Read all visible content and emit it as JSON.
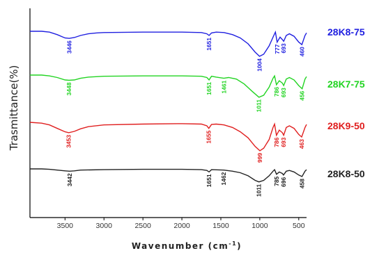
{
  "chart_data": {
    "type": "line",
    "title": "",
    "xlabel": "Wavenumber (cm",
    "xlabel_sup": "-1",
    "xlabel_close": ")",
    "ylabel": "Trasmittance(%)",
    "xlim": [
      3950,
      400
    ],
    "x_reversed": true,
    "x_ticks": [
      "3500",
      "3000",
      "2500",
      "2000",
      "1500",
      "1000",
      "500"
    ],
    "grid": false,
    "legend_placement": "right",
    "series": [
      {
        "name": "28K8-75",
        "color": "#1f1fe0",
        "baseline": 0.0,
        "points": [
          [
            3950,
            0.0
          ],
          [
            3800,
            0.0
          ],
          [
            3700,
            0.02
          ],
          [
            3600,
            0.08
          ],
          [
            3500,
            0.16
          ],
          [
            3446,
            0.17
          ],
          [
            3380,
            0.15
          ],
          [
            3300,
            0.1
          ],
          [
            3200,
            0.06
          ],
          [
            3100,
            0.04
          ],
          [
            3000,
            0.03
          ],
          [
            2500,
            0.02
          ],
          [
            2000,
            0.02
          ],
          [
            1750,
            0.03
          ],
          [
            1680,
            0.06
          ],
          [
            1651,
            0.1
          ],
          [
            1620,
            0.04
          ],
          [
            1560,
            0.02
          ],
          [
            1460,
            0.03
          ],
          [
            1350,
            0.08
          ],
          [
            1250,
            0.16
          ],
          [
            1150,
            0.3
          ],
          [
            1060,
            0.5
          ],
          [
            1004,
            0.6
          ],
          [
            950,
            0.55
          ],
          [
            880,
            0.35
          ],
          [
            820,
            0.1
          ],
          [
            800,
            0.02
          ],
          [
            777,
            0.26
          ],
          [
            740,
            0.14
          ],
          [
            710,
            0.2
          ],
          [
            693,
            0.24
          ],
          [
            660,
            0.1
          ],
          [
            620,
            0.06
          ],
          [
            560,
            0.12
          ],
          [
            500,
            0.26
          ],
          [
            460,
            0.32
          ],
          [
            420,
            0.1
          ],
          [
            400,
            0.04
          ]
        ],
        "peaks": [
          [
            3446,
            "3446"
          ],
          [
            1651,
            "1651"
          ],
          [
            1004,
            "1004"
          ],
          [
            777,
            "777"
          ],
          [
            693,
            "693"
          ],
          [
            460,
            "460"
          ]
        ]
      },
      {
        "name": "28K7-75",
        "color": "#22d422",
        "baseline": 0.0,
        "points": [
          [
            3950,
            0.0
          ],
          [
            3800,
            0.0
          ],
          [
            3700,
            0.02
          ],
          [
            3600,
            0.06
          ],
          [
            3500,
            0.12
          ],
          [
            3448,
            0.13
          ],
          [
            3380,
            0.12
          ],
          [
            3300,
            0.08
          ],
          [
            3200,
            0.05
          ],
          [
            3000,
            0.03
          ],
          [
            2500,
            0.02
          ],
          [
            2000,
            0.02
          ],
          [
            1750,
            0.03
          ],
          [
            1680,
            0.06
          ],
          [
            1651,
            0.12
          ],
          [
            1620,
            0.03
          ],
          [
            1560,
            0.05
          ],
          [
            1461,
            0.08
          ],
          [
            1400,
            0.06
          ],
          [
            1300,
            0.1
          ],
          [
            1200,
            0.22
          ],
          [
            1100,
            0.4
          ],
          [
            1011,
            0.55
          ],
          [
            950,
            0.5
          ],
          [
            880,
            0.3
          ],
          [
            830,
            0.08
          ],
          [
            810,
            0.02
          ],
          [
            786,
            0.24
          ],
          [
            750,
            0.14
          ],
          [
            710,
            0.2
          ],
          [
            693,
            0.26
          ],
          [
            660,
            0.1
          ],
          [
            620,
            0.06
          ],
          [
            560,
            0.12
          ],
          [
            500,
            0.26
          ],
          [
            456,
            0.34
          ],
          [
            420,
            0.1
          ],
          [
            400,
            0.04
          ]
        ],
        "peaks": [
          [
            3448,
            "3448"
          ],
          [
            1651,
            "1651"
          ],
          [
            1461,
            "1461"
          ],
          [
            1011,
            "1011"
          ],
          [
            786,
            "786"
          ],
          [
            693,
            "693"
          ],
          [
            456,
            "456"
          ]
        ]
      },
      {
        "name": "28K9-50",
        "color": "#e01f1f",
        "baseline": 0.0,
        "points": [
          [
            3950,
            0.0
          ],
          [
            3800,
            0.02
          ],
          [
            3700,
            0.06
          ],
          [
            3600,
            0.14
          ],
          [
            3500,
            0.22
          ],
          [
            3453,
            0.24
          ],
          [
            3380,
            0.21
          ],
          [
            3300,
            0.15
          ],
          [
            3200,
            0.1
          ],
          [
            3000,
            0.06
          ],
          [
            2500,
            0.04
          ],
          [
            2000,
            0.03
          ],
          [
            1750,
            0.04
          ],
          [
            1680,
            0.08
          ],
          [
            1655,
            0.14
          ],
          [
            1620,
            0.05
          ],
          [
            1560,
            0.04
          ],
          [
            1460,
            0.06
          ],
          [
            1350,
            0.12
          ],
          [
            1250,
            0.22
          ],
          [
            1150,
            0.36
          ],
          [
            1060,
            0.56
          ],
          [
            999,
            0.66
          ],
          [
            950,
            0.6
          ],
          [
            880,
            0.4
          ],
          [
            830,
            0.12
          ],
          [
            810,
            0.04
          ],
          [
            786,
            0.3
          ],
          [
            750,
            0.18
          ],
          [
            710,
            0.24
          ],
          [
            693,
            0.3
          ],
          [
            660,
            0.12
          ],
          [
            620,
            0.08
          ],
          [
            560,
            0.14
          ],
          [
            500,
            0.28
          ],
          [
            463,
            0.34
          ],
          [
            420,
            0.12
          ],
          [
            400,
            0.05
          ]
        ],
        "peaks": [
          [
            3453,
            "3453"
          ],
          [
            1655,
            "1655"
          ],
          [
            999,
            "999"
          ],
          [
            786,
            "786"
          ],
          [
            693,
            "693"
          ],
          [
            463,
            "463"
          ]
        ]
      },
      {
        "name": "28K8-50",
        "color": "#222222",
        "baseline": 0.0,
        "points": [
          [
            3950,
            0.0
          ],
          [
            3800,
            0.0
          ],
          [
            3700,
            0.01
          ],
          [
            3600,
            0.03
          ],
          [
            3500,
            0.05
          ],
          [
            3442,
            0.06
          ],
          [
            3380,
            0.05
          ],
          [
            3300,
            0.03
          ],
          [
            3000,
            0.02
          ],
          [
            2500,
            0.01
          ],
          [
            2000,
            0.01
          ],
          [
            1750,
            0.02
          ],
          [
            1680,
            0.04
          ],
          [
            1651,
            0.08
          ],
          [
            1620,
            0.02
          ],
          [
            1462,
            0.03
          ],
          [
            1350,
            0.06
          ],
          [
            1250,
            0.1
          ],
          [
            1150,
            0.18
          ],
          [
            1060,
            0.3
          ],
          [
            1011,
            0.34
          ],
          [
            950,
            0.3
          ],
          [
            880,
            0.18
          ],
          [
            830,
            0.06
          ],
          [
            810,
            0.02
          ],
          [
            785,
            0.14
          ],
          [
            750,
            0.08
          ],
          [
            710,
            0.12
          ],
          [
            696,
            0.16
          ],
          [
            660,
            0.06
          ],
          [
            620,
            0.04
          ],
          [
            560,
            0.08
          ],
          [
            500,
            0.16
          ],
          [
            458,
            0.2
          ],
          [
            420,
            0.06
          ],
          [
            400,
            0.02
          ]
        ],
        "peaks": [
          [
            3442,
            "3442"
          ],
          [
            1651,
            "1651"
          ],
          [
            1462,
            "1462"
          ],
          [
            1011,
            "1011"
          ],
          [
            785,
            "785"
          ],
          [
            696,
            "696"
          ],
          [
            458,
            "458"
          ]
        ]
      }
    ]
  }
}
